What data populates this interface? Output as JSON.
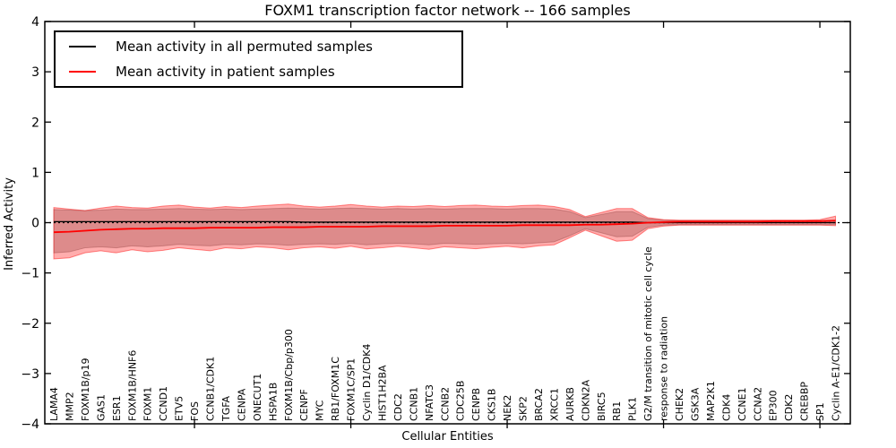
{
  "title": "FOXM1 transcription factor network -- 166 samples",
  "legend": {
    "items": [
      {
        "label": "Mean activity in all permuted samples",
        "color": "#000000"
      },
      {
        "label": "Mean activity in patient samples",
        "color": "#ff0000"
      }
    ]
  },
  "chart_data": {
    "type": "line",
    "title": "FOXM1 transcription factor network -- 166 samples",
    "xlabel": "Cellular Entities",
    "ylabel": "Inferred Activity",
    "ylim": [
      -4,
      4
    ],
    "grid": false,
    "legend_position": "upper left",
    "zero_line": {
      "style": "dotted",
      "color": "#000000",
      "y": 0
    },
    "y_ticks": {
      "values": [
        4,
        3,
        2,
        1,
        0,
        -1,
        -2,
        -3,
        -4
      ],
      "labels": [
        "4",
        "3",
        "2",
        "1",
        "0",
        "−1",
        "−2",
        "−3",
        "−4"
      ]
    },
    "x_major_tick_positions": [
      10,
      20,
      30,
      40,
      50
    ],
    "categories": [
      "LAMA4",
      "MMP2",
      "FOXM1B/p19",
      "GAS1",
      "ESR1",
      "FOXM1B/HNF6",
      "FOXM1",
      "CCND1",
      "ETV5",
      "FOS",
      "CCNB1/CDK1",
      "TGFA",
      "CENPA",
      "ONECUT1",
      "HSPA1B",
      "FOXM1B/Cbp/p300",
      "CENPF",
      "MYC",
      "RB1/FOXM1C",
      "FOXM1C/SP1",
      "Cyclin D1/CDK4",
      "HIST1H2BA",
      "CDC2",
      "CCNB1",
      "NFATC3",
      "CCNB2",
      "CDC25B",
      "CENPB",
      "CKS1B",
      "NEK2",
      "SKP2",
      "BRCA2",
      "XRCC1",
      "AURKB",
      "CDKN2A",
      "BIRC5",
      "RB1",
      "PLK1",
      "G2/M transition of mitotic cell cycle",
      "response to radiation",
      "CHEK2",
      "GSK3A",
      "MAP2K1",
      "CDK4",
      "CCNE1",
      "CCNA2",
      "EP300",
      "CDK2",
      "CREBBP",
      "SP1",
      "Cyclin A-E1/CDK1-2"
    ],
    "series": [
      {
        "name": "Mean activity in all permuted samples",
        "color": "#000000",
        "line_width": 1.3,
        "band_fill": "rgba(130,130,130,0.40)",
        "band_edge": "rgba(110,110,110,0.45)",
        "values": [
          0.02,
          0.02,
          0.02,
          0.02,
          0.02,
          0.02,
          0.02,
          0.02,
          0.02,
          0.02,
          0.02,
          0.02,
          0.02,
          0.02,
          0.02,
          0.02,
          0.01,
          0.01,
          0.01,
          0.01,
          0.01,
          0.01,
          0.01,
          0.01,
          0.01,
          0.01,
          0.01,
          0.01,
          0.01,
          0.01,
          0.01,
          0.01,
          0.01,
          0.01,
          0.01,
          0.01,
          0.01,
          0.01,
          0.0,
          0.0,
          0.0,
          0.0,
          0.0,
          0.0,
          0.0,
          0.0,
          0.0,
          0.0,
          0.0,
          0.0,
          0.0
        ],
        "band_upper": [
          0.26,
          0.25,
          0.24,
          0.25,
          0.27,
          0.26,
          0.26,
          0.27,
          0.28,
          0.27,
          0.26,
          0.27,
          0.26,
          0.27,
          0.28,
          0.29,
          0.28,
          0.27,
          0.28,
          0.29,
          0.28,
          0.27,
          0.28,
          0.27,
          0.28,
          0.27,
          0.28,
          0.28,
          0.28,
          0.27,
          0.28,
          0.28,
          0.27,
          0.22,
          0.1,
          0.16,
          0.22,
          0.22,
          0.08,
          0.05,
          0.04,
          0.04,
          0.04,
          0.04,
          0.04,
          0.04,
          0.04,
          0.04,
          0.04,
          0.04,
          0.05
        ],
        "band_lower": [
          -0.6,
          -0.58,
          -0.5,
          -0.48,
          -0.5,
          -0.46,
          -0.48,
          -0.46,
          -0.43,
          -0.45,
          -0.46,
          -0.43,
          -0.44,
          -0.42,
          -0.43,
          -0.45,
          -0.43,
          -0.42,
          -0.43,
          -0.41,
          -0.44,
          -0.42,
          -0.41,
          -0.42,
          -0.44,
          -0.41,
          -0.42,
          -0.43,
          -0.42,
          -0.41,
          -0.42,
          -0.4,
          -0.38,
          -0.26,
          -0.12,
          -0.2,
          -0.28,
          -0.27,
          -0.09,
          -0.05,
          -0.04,
          -0.04,
          -0.04,
          -0.04,
          -0.04,
          -0.04,
          -0.04,
          -0.04,
          -0.04,
          -0.04,
          -0.04
        ]
      },
      {
        "name": "Mean activity in patient samples",
        "color": "#ff0000",
        "line_width": 1.8,
        "band_fill": "rgba(255,0,0,0.32)",
        "band_edge": "rgba(255,0,0,0.45)",
        "values": [
          -0.19,
          -0.18,
          -0.16,
          -0.14,
          -0.13,
          -0.12,
          -0.12,
          -0.11,
          -0.11,
          -0.11,
          -0.1,
          -0.1,
          -0.1,
          -0.1,
          -0.09,
          -0.09,
          -0.09,
          -0.08,
          -0.08,
          -0.08,
          -0.08,
          -0.07,
          -0.07,
          -0.07,
          -0.07,
          -0.06,
          -0.06,
          -0.06,
          -0.06,
          -0.06,
          -0.05,
          -0.05,
          -0.05,
          -0.05,
          -0.04,
          -0.04,
          -0.03,
          -0.02,
          0.0,
          0.01,
          0.02,
          0.02,
          0.02,
          0.02,
          0.02,
          0.02,
          0.03,
          0.03,
          0.03,
          0.03,
          0.04
        ],
        "band_upper": [
          0.3,
          0.27,
          0.24,
          0.29,
          0.33,
          0.3,
          0.29,
          0.33,
          0.35,
          0.31,
          0.29,
          0.32,
          0.3,
          0.33,
          0.35,
          0.37,
          0.33,
          0.31,
          0.33,
          0.36,
          0.33,
          0.31,
          0.33,
          0.32,
          0.34,
          0.32,
          0.34,
          0.35,
          0.33,
          0.32,
          0.34,
          0.35,
          0.32,
          0.26,
          0.12,
          0.2,
          0.28,
          0.28,
          0.1,
          0.06,
          0.05,
          0.05,
          0.05,
          0.05,
          0.05,
          0.05,
          0.05,
          0.05,
          0.05,
          0.06,
          0.13
        ],
        "band_lower": [
          -0.72,
          -0.7,
          -0.6,
          -0.56,
          -0.6,
          -0.54,
          -0.58,
          -0.55,
          -0.5,
          -0.53,
          -0.56,
          -0.5,
          -0.52,
          -0.48,
          -0.5,
          -0.54,
          -0.5,
          -0.48,
          -0.51,
          -0.47,
          -0.52,
          -0.5,
          -0.47,
          -0.5,
          -0.53,
          -0.48,
          -0.5,
          -0.52,
          -0.49,
          -0.47,
          -0.5,
          -0.46,
          -0.44,
          -0.3,
          -0.15,
          -0.26,
          -0.37,
          -0.35,
          -0.12,
          -0.07,
          -0.05,
          -0.05,
          -0.05,
          -0.05,
          -0.05,
          -0.05,
          -0.05,
          -0.05,
          -0.05,
          -0.05,
          -0.06
        ]
      }
    ]
  }
}
